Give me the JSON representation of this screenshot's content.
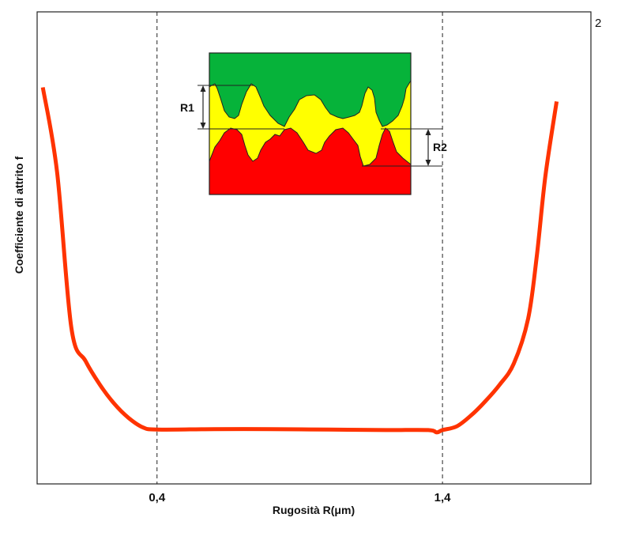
{
  "chart_data": {
    "type": "line",
    "xlabel": "Rugosità R(μm)",
    "ylabel": "Coefficiente di attrito f",
    "corner_label": "2",
    "x_ticks": [
      "0,4",
      "1,4"
    ],
    "reference_lines_x": [
      0.4,
      1.4
    ],
    "xlim": [
      -0.02,
      1.92
    ],
    "ylim": [
      0,
      100
    ],
    "grid": false,
    "series": [
      {
        "color": "#ff3300",
        "x": [
          0.0,
          0.05,
          0.1,
          0.15,
          0.2,
          0.25,
          0.3,
          0.35,
          0.4,
          0.6,
          0.8,
          1.0,
          1.2,
          1.35,
          1.38,
          1.4,
          1.45,
          1.5,
          1.55,
          1.6,
          1.65,
          1.7,
          1.73,
          1.76,
          1.8
        ],
        "y": [
          84,
          66,
          33,
          26,
          21,
          17,
          14,
          12,
          11.5,
          11.6,
          11.6,
          11.5,
          11.4,
          11.4,
          10.9,
          11.4,
          12.2,
          14.5,
          17.5,
          21,
          25.5,
          35,
          48,
          65,
          81
        ]
      }
    ],
    "inset": {
      "labels": [
        "R1",
        "R2"
      ],
      "colors": {
        "top": "#06b33a",
        "middle": "#ffff00",
        "bottom": "#ff0000"
      }
    }
  }
}
